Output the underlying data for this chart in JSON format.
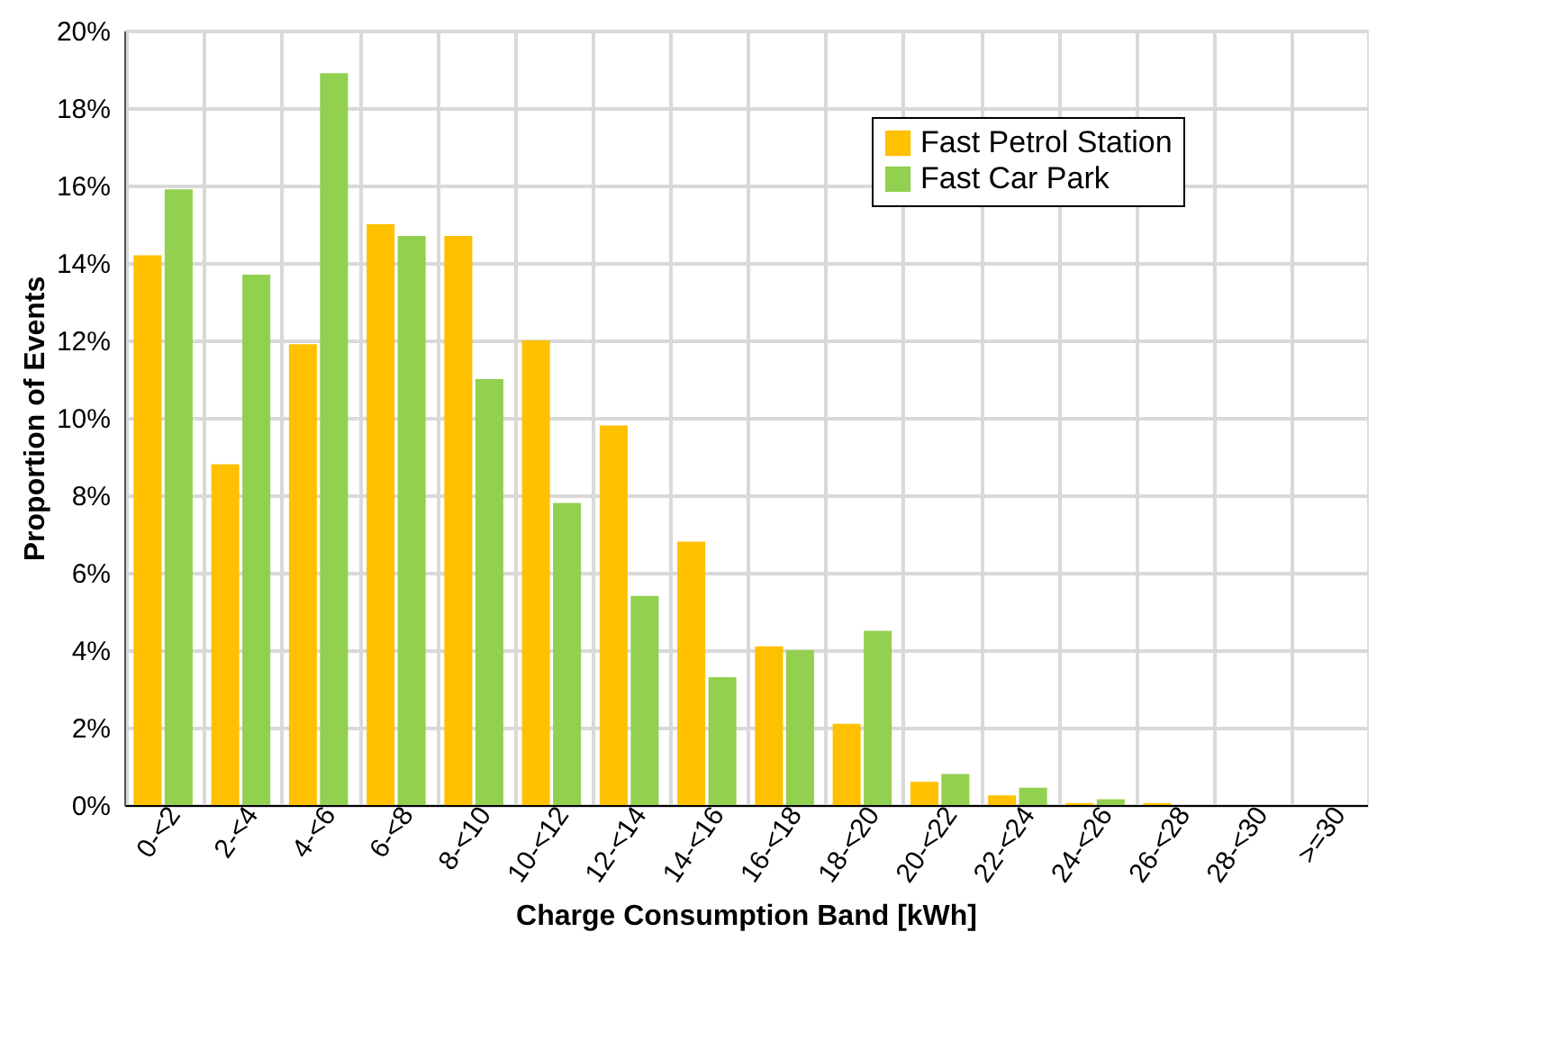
{
  "chart_data": {
    "type": "bar",
    "xlabel": "Charge Consumption Band [kWh]",
    "ylabel": "Proportion of Events",
    "categories": [
      "0-<2",
      "2-<4",
      "4-<6",
      "6-<8",
      "8-<10",
      "10-<12",
      "12-<14",
      "14-<16",
      "16-<18",
      "18-<20",
      "20-<22",
      "22-<24",
      "24-<26",
      "26-<28",
      "28-<30",
      ">=30"
    ],
    "series": [
      {
        "name": "Fast Petrol Station",
        "color": "#ffc000",
        "values": [
          14.2,
          8.8,
          11.9,
          15.0,
          14.7,
          12.0,
          9.8,
          6.8,
          4.1,
          2.1,
          0.6,
          0.25,
          0.05,
          0.05,
          0,
          0
        ]
      },
      {
        "name": "Fast Car Park",
        "color": "#92d050",
        "values": [
          15.9,
          13.7,
          18.9,
          14.7,
          11.0,
          7.8,
          5.4,
          3.3,
          4.0,
          4.5,
          0.8,
          0.45,
          0.15,
          0,
          0,
          0
        ]
      }
    ],
    "ylim": [
      0,
      20
    ],
    "yticks": [
      {
        "value": 0,
        "label": "0%"
      },
      {
        "value": 2,
        "label": "2%"
      },
      {
        "value": 4,
        "label": "4%"
      },
      {
        "value": 6,
        "label": "6%"
      },
      {
        "value": 8,
        "label": "8%"
      },
      {
        "value": 10,
        "label": "10%"
      },
      {
        "value": 12,
        "label": "12%"
      },
      {
        "value": 14,
        "label": "14%"
      },
      {
        "value": 16,
        "label": "16%"
      },
      {
        "value": 18,
        "label": "18%"
      },
      {
        "value": 20,
        "label": "20%"
      }
    ],
    "grid": true,
    "legend": "top right"
  }
}
